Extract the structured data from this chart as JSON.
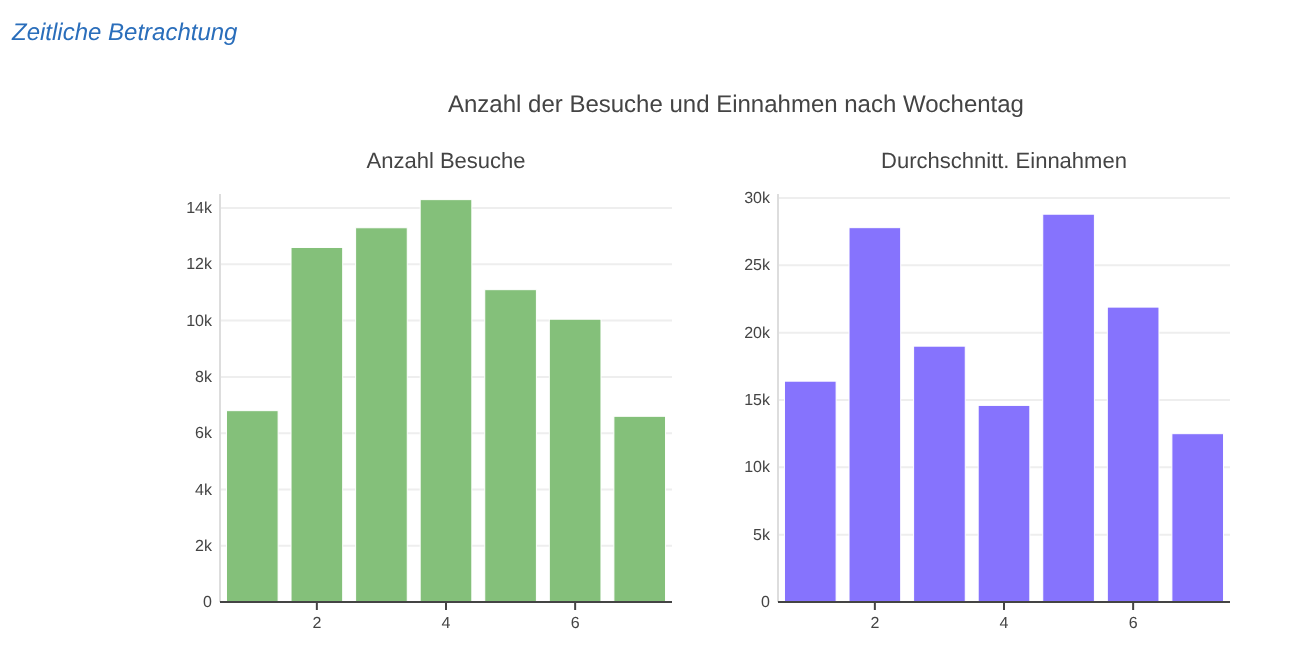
{
  "chart_data": [
    {
      "type": "bar",
      "title": "Anzahl Besuche",
      "annotations": [
        "Zeitliche Betrachtung",
        "Anzahl der Besuche und Einnahmen nach Wochentag"
      ],
      "x": [
        1,
        2,
        3,
        4,
        5,
        6,
        7
      ],
      "values": [
        6800,
        12600,
        13300,
        14300,
        11100,
        10050,
        6600
      ],
      "color": "#84c07a",
      "xlim": [
        0.5,
        7.5
      ],
      "xticks": [
        2,
        4,
        6
      ],
      "ylim": [
        0,
        14500
      ],
      "yticks": [
        {
          "value": 0,
          "label": "0"
        },
        {
          "value": 2000,
          "label": "2k"
        },
        {
          "value": 4000,
          "label": "4k"
        },
        {
          "value": 6000,
          "label": "6k"
        },
        {
          "value": 8000,
          "label": "8k"
        },
        {
          "value": 10000,
          "label": "10k"
        },
        {
          "value": 12000,
          "label": "12k"
        },
        {
          "value": 14000,
          "label": "14k"
        }
      ],
      "grid": "y"
    },
    {
      "type": "bar",
      "title": "Durchschnitt. Einnahmen",
      "x": [
        1,
        2,
        3,
        4,
        5,
        6,
        7
      ],
      "values": [
        16400,
        27800,
        19000,
        14600,
        28800,
        21900,
        12500
      ],
      "color": "#8673fd",
      "xlim": [
        0.5,
        7.5
      ],
      "xticks": [
        2,
        4,
        6
      ],
      "ylim": [
        0,
        30300
      ],
      "yticks": [
        {
          "value": 0,
          "label": "0"
        },
        {
          "value": 5000,
          "label": "5k"
        },
        {
          "value": 10000,
          "label": "10k"
        },
        {
          "value": 15000,
          "label": "15k"
        },
        {
          "value": 20000,
          "label": "20k"
        },
        {
          "value": 25000,
          "label": "25k"
        },
        {
          "value": 30000,
          "label": "30k"
        }
      ],
      "grid": "y"
    }
  ]
}
